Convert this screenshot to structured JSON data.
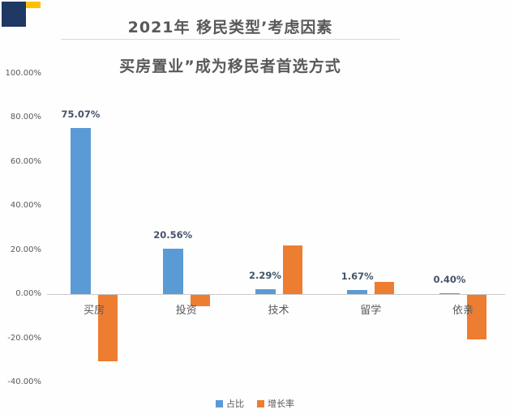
{
  "logo": {
    "navy_color": "#1F3864",
    "gold_color": "#FFC000"
  },
  "header": {
    "title": "2021年 移民类型’考虑因素",
    "subtitle": "买房置业”成为移民者首选方式"
  },
  "chart_data": {
    "type": "bar",
    "title": "2021年 移民类型’考虑因素",
    "subtitle": "买房置业”成为移民者首选方式",
    "categories": [
      "买房",
      "投资",
      "技术",
      "留学",
      "依亲"
    ],
    "series": [
      {
        "name": "占比",
        "color": "#5B9BD5",
        "values": [
          75.07,
          20.56,
          2.29,
          1.67,
          0.4
        ],
        "labels": [
          "75.07%",
          "20.56%",
          "2.29%",
          "1.67%",
          "0.40%"
        ]
      },
      {
        "name": "增长率",
        "color": "#ED7D31",
        "values": [
          -30,
          -5,
          22,
          5.5,
          -20
        ],
        "values_estimated": true
      }
    ],
    "y_axis": {
      "ticks": [
        "100.00%",
        "80.00%",
        "60.00%",
        "40.00%",
        "20.00%",
        "0.00%",
        "-20.00%",
        "-40.00%"
      ],
      "tick_values": [
        100,
        80,
        60,
        40,
        20,
        0,
        -20,
        -40
      ],
      "min": -40,
      "max": 100
    },
    "legend": [
      {
        "label": "占比",
        "color": "#5B9BD5"
      },
      {
        "label": "增长率",
        "color": "#ED7D31"
      }
    ],
    "grid": false,
    "legend_position": "bottom-center"
  }
}
